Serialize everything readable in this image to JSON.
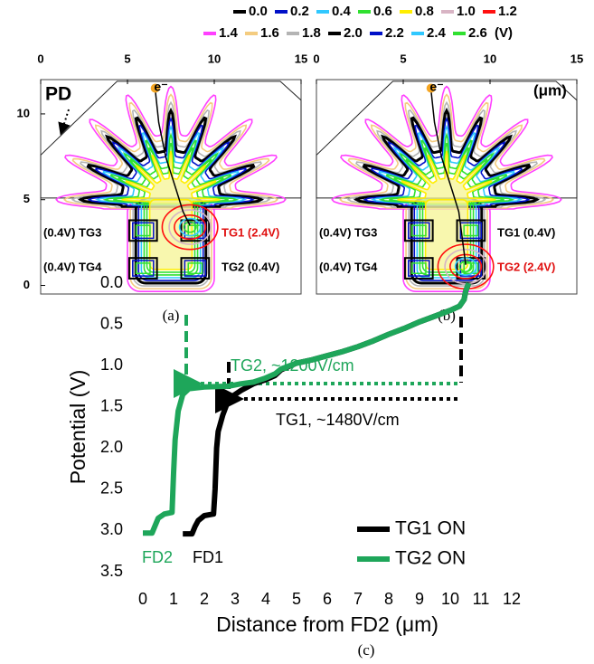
{
  "chart_data": [
    {
      "type": "contour",
      "caption": "(a)",
      "levels": [
        {
          "value": 0,
          "label": "0.0"
        },
        0.2,
        0.4,
        0.6,
        0.8,
        {
          "value": 1,
          "label": "1.0"
        },
        1.2,
        1.4,
        1.6,
        1.8,
        {
          "value": 2,
          "label": "2.0"
        },
        2.2,
        2.4,
        2.6
      ],
      "colors": [
        "#000000",
        "#0010c8",
        "#30c8ff",
        "#30e030",
        "#ffee00",
        "#d8b4c4",
        "#ff1010",
        "#ff40ff",
        "#f4cc80",
        "#b4b4b4",
        "#000000",
        "#0010c8",
        "#30c8ff",
        "#30e030"
      ],
      "legend_unit": "(V)",
      "xlim": [
        0,
        15
      ],
      "xticks": [
        0,
        5,
        10,
        15
      ],
      "ylim": [
        -0.5,
        12
      ],
      "yticks": [
        0,
        5,
        10
      ],
      "annotations": [
        {
          "text": "PD",
          "color": "#000000"
        },
        {
          "text": "e⁻",
          "color": "#000000"
        },
        {
          "text": "(0.4V) TG3",
          "color": "#000000"
        },
        {
          "text": "TG1 (2.4V)",
          "color": "#e01010"
        },
        {
          "text": "(0.4V) TG4",
          "color": "#000000"
        },
        {
          "text": "TG2 (0.4V)",
          "color": "#000000"
        }
      ]
    },
    {
      "type": "contour",
      "caption": "(b)",
      "xlim": [
        0,
        15
      ],
      "xticks": [
        0,
        5,
        10,
        15
      ],
      "ylim": [
        -0.5,
        12
      ],
      "annotations": [
        {
          "text": "e⁻",
          "color": "#000000"
        },
        {
          "text": "(μm)",
          "color": "#000000"
        },
        {
          "text": "(0.4V) TG3",
          "color": "#000000"
        },
        {
          "text": "TG1 (0.4V)",
          "color": "#000000"
        },
        {
          "text": "(0.4V) TG4",
          "color": "#000000"
        },
        {
          "text": "TG2 (2.4V)",
          "color": "#e01010"
        }
      ]
    },
    {
      "type": "line",
      "caption": "(c)",
      "xlabel": "Distance from FD2 (μm)",
      "ylabel": "Potential (V)",
      "xlim": [
        0,
        12
      ],
      "xticks": [
        0,
        1,
        2,
        3,
        4,
        5,
        6,
        7,
        8,
        9,
        10,
        11,
        12
      ],
      "ylim": [
        0,
        3.5
      ],
      "y_inverted": true,
      "yticks": [
        {
          "value": 0,
          "label": "0.0"
        },
        0.5,
        {
          "value": 1,
          "label": "1.0"
        },
        1.5,
        {
          "value": 2,
          "label": "2.0"
        },
        2.5,
        {
          "value": 3,
          "label": "3.0"
        },
        3.5
      ],
      "legend_position": "lower right",
      "series": [
        {
          "name": "TG1 ON",
          "color": "#000000",
          "x": [
            1.3,
            1.6,
            1.7,
            1.8,
            2.0,
            2.3,
            2.35,
            2.4,
            2.45,
            2.6,
            2.8,
            3.2,
            3.6,
            4.0,
            4.3,
            4.5,
            5.0,
            5.5,
            6.0,
            6.5,
            7.0,
            7.5,
            8.0,
            8.5,
            9.0,
            9.5,
            10.0,
            10.3,
            10.45,
            10.5,
            10.6
          ],
          "values": [
            3.04,
            3.04,
            2.95,
            2.88,
            2.82,
            2.8,
            2.5,
            2.0,
            1.8,
            1.6,
            1.4,
            1.3,
            1.22,
            1.17,
            1.12,
            1.05,
            0.97,
            0.93,
            0.88,
            0.83,
            0.77,
            0.7,
            0.62,
            0.55,
            0.47,
            0.4,
            0.33,
            0.28,
            0.2,
            0.1,
            0.0
          ]
        },
        {
          "name": "TG2 ON",
          "color": "#1ea65a",
          "x": [
            0,
            0.3,
            0.5,
            0.7,
            0.95,
            1.0,
            1.05,
            1.15,
            1.3,
            1.5,
            2.0,
            2.8,
            3.2,
            3.6,
            4.0,
            4.3,
            4.5,
            5.0,
            5.5,
            6.0,
            6.5,
            7.0,
            7.5,
            8.0,
            8.5,
            9.0,
            9.5,
            10.0,
            10.3,
            10.45,
            10.5,
            10.6
          ],
          "values": [
            3.03,
            3.03,
            2.85,
            2.8,
            2.78,
            2.3,
            1.9,
            1.55,
            1.35,
            1.28,
            1.26,
            1.25,
            1.22,
            1.2,
            1.15,
            1.1,
            1.04,
            0.97,
            0.93,
            0.88,
            0.83,
            0.77,
            0.7,
            0.62,
            0.55,
            0.47,
            0.4,
            0.33,
            0.28,
            0.2,
            0.1,
            0.0
          ]
        }
      ],
      "annotations": [
        {
          "text": "TG2, ~1200V/cm",
          "color": "#1ea65a"
        },
        {
          "text": "TG1, ~1480V/cm",
          "color": "#000000"
        },
        {
          "text": "FD2",
          "color": "#1ea65a"
        },
        {
          "text": "FD1",
          "color": "#000000"
        }
      ]
    }
  ]
}
